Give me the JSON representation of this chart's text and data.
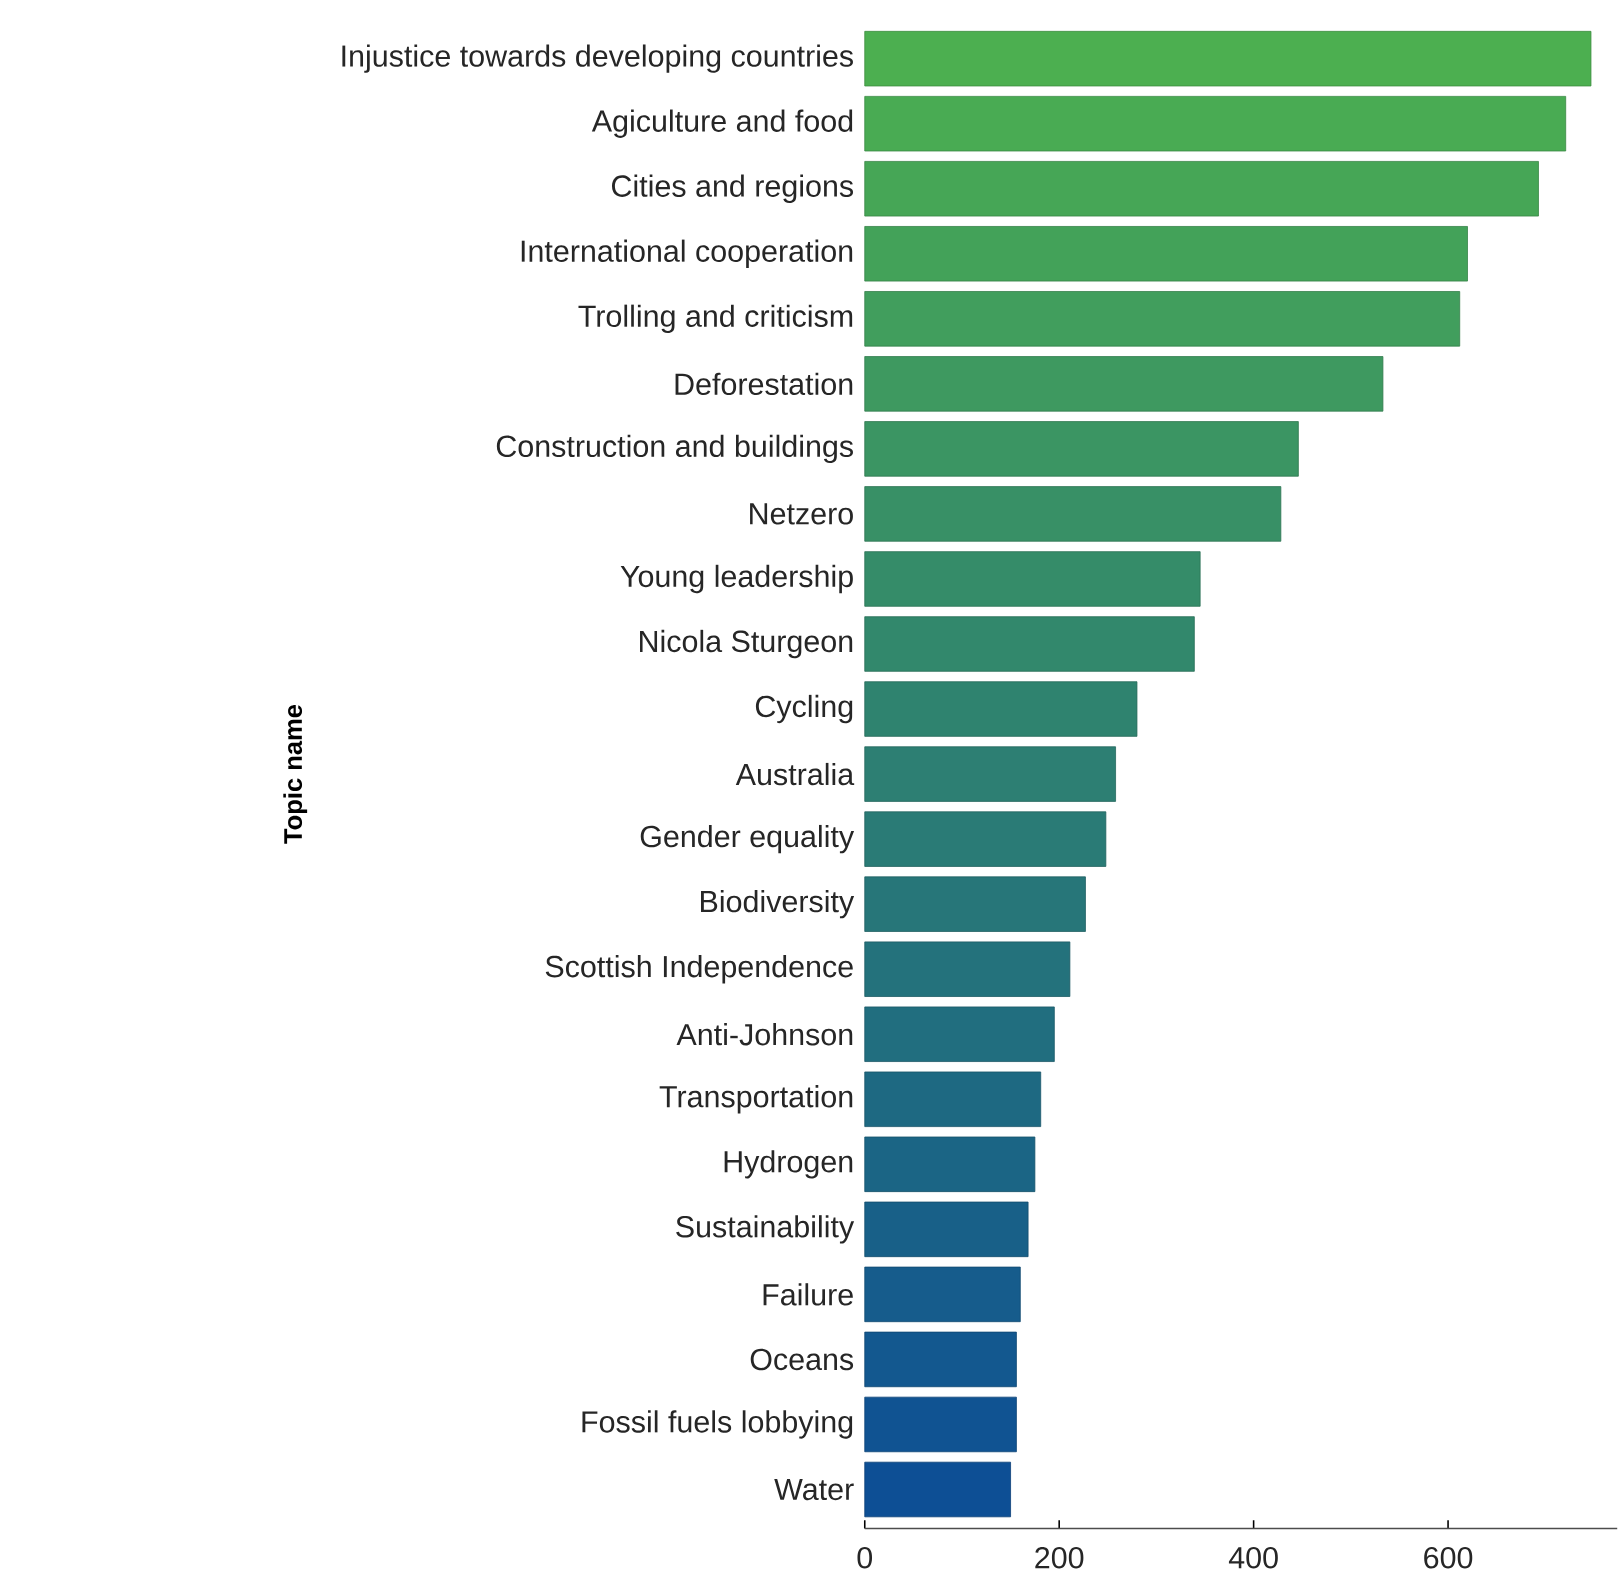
{
  "chart_data": {
    "type": "bar",
    "orientation": "horizontal",
    "ylabel": "Topic name",
    "categories": [
      "Injustice towards developing countries",
      "Agiculture and food",
      "Cities and regions",
      "International cooperation",
      "Trolling and criticism",
      "Deforestation",
      "Construction and buildings",
      "Netzero",
      "Young leadership",
      "Nicola Sturgeon",
      "Cycling",
      "Australia",
      "Gender equality",
      "Biodiversity",
      "Scottish Independence",
      "Anti-Johnson",
      "Transportation",
      "Hydrogen",
      "Sustainability",
      "Failure",
      "Oceans",
      "Fossil fuels lobbying",
      "Water"
    ],
    "values": [
      747,
      721,
      693,
      620,
      612,
      533,
      446,
      428,
      345,
      339,
      280,
      258,
      248,
      227,
      211,
      195,
      181,
      175,
      168,
      160,
      156,
      156,
      150
    ],
    "colors": [
      "#4caf50",
      "#49ab53",
      "#46a656",
      "#43a259",
      "#419e5d",
      "#3e9960",
      "#3b9563",
      "#389066",
      "#358c69",
      "#32886c",
      "#2f836f",
      "#2d7f73",
      "#2a7b76",
      "#277679",
      "#24727c",
      "#216e7f",
      "#1e6982",
      "#1b6585",
      "#186088",
      "#165c8c",
      "#13588f",
      "#105392",
      "#0d4f95"
    ],
    "xlim": [
      0,
      774
    ],
    "xticks": [
      0,
      200,
      400,
      600
    ],
    "grid": false
  }
}
